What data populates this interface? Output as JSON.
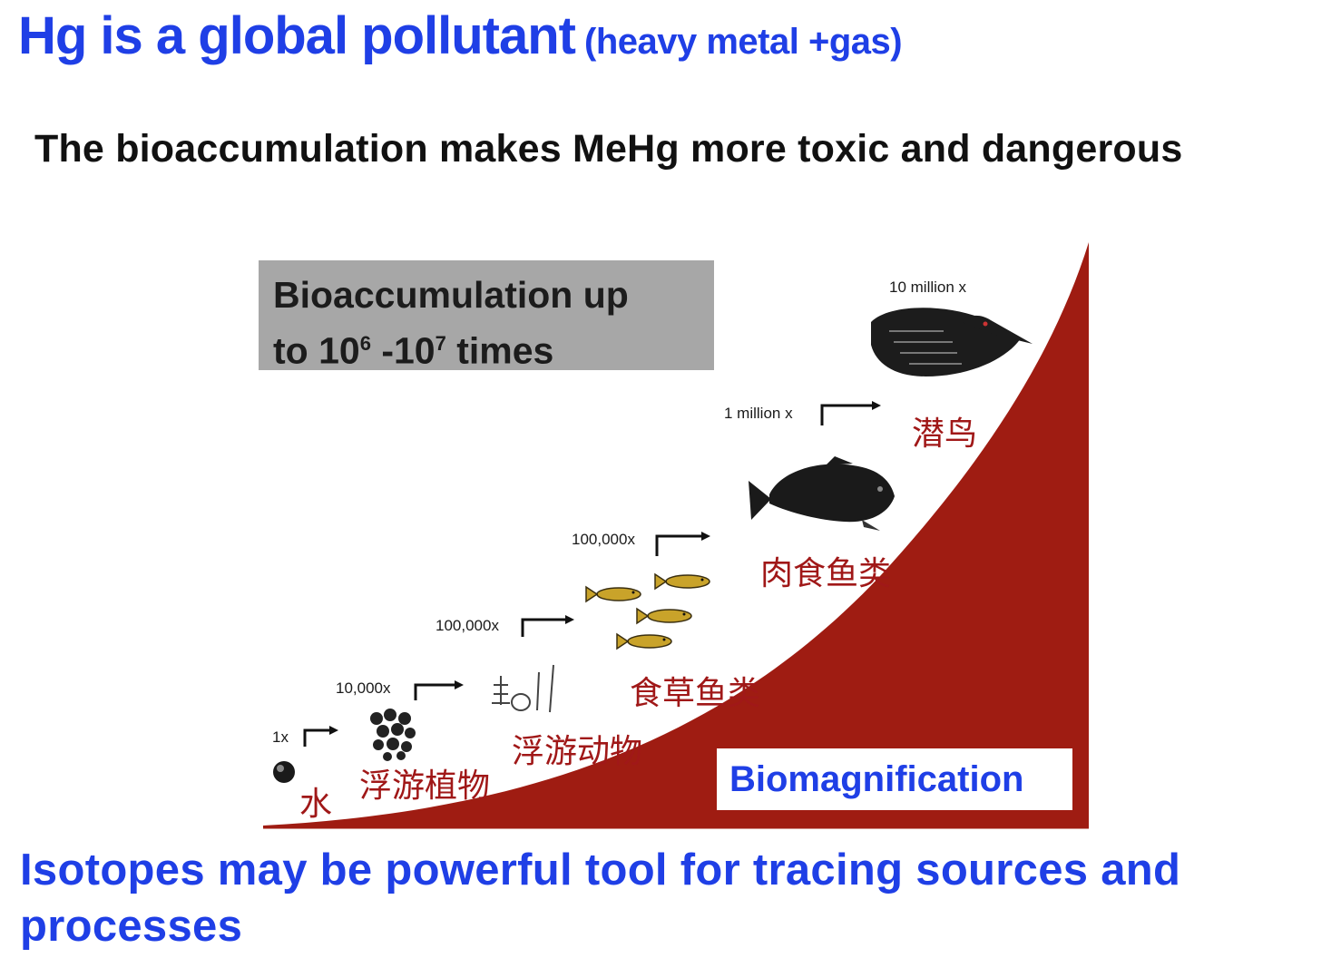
{
  "header": {
    "title": "Hg is a global pollutant",
    "title_paren": "(heavy metal +gas)",
    "subtitle": "The bioaccumulation makes MeHg more toxic and dangerous"
  },
  "figure": {
    "box_line1": "Bioaccumulation up",
    "box_line2_prefix": "to 10",
    "box_exp1": "6",
    "box_mid": " -10",
    "box_exp2": "7",
    "box_suffix": " times",
    "label_biomag": "Biomagnification",
    "levels": [
      {
        "factor": "1x",
        "organism": "水",
        "icon": "water-drop-icon"
      },
      {
        "factor": "10,000x",
        "organism": "浮游植物",
        "icon": "phytoplankton-icon"
      },
      {
        "factor": "100,000x",
        "organism": "浮游动物",
        "icon": "zooplankton-icon"
      },
      {
        "factor": "100,000x",
        "organism": "食草鱼类",
        "icon": "small-fish-icon"
      },
      {
        "factor": "1 million x",
        "organism": "肉食鱼类",
        "icon": "large-fish-icon"
      },
      {
        "factor": "10 million x",
        "organism": "潜鸟",
        "icon": "loon-bird-icon"
      }
    ],
    "colors": {
      "curve_fill": "#9f1c12",
      "accent_blue": "#1f3fe6",
      "box_gray": "#a7a7a7",
      "cn_label": "#a01818"
    }
  },
  "footer": {
    "text": "Isotopes may be powerful tool for tracing sources and processes"
  }
}
